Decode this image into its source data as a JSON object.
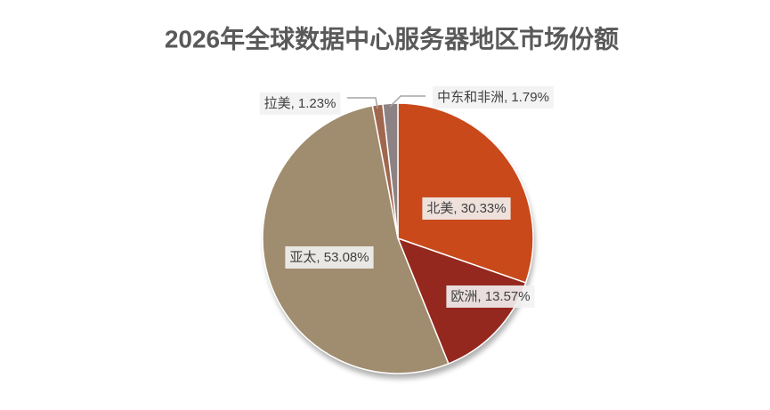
{
  "chart_data": {
    "type": "pie",
    "title": "2026年全球数据中心服务器地区市场份额",
    "values": [
      30.33,
      13.57,
      53.08,
      1.23,
      1.79
    ],
    "value_labels": [
      "北美, 30.33%",
      "欧洲, 13.57%",
      "亚太, 53.08%",
      "拉美, 1.23%",
      "中东和非洲, 1.79%"
    ],
    "colors": [
      "#C9491B",
      "#95281E",
      "#A08C6E",
      "#A0674F",
      "#8C8283"
    ]
  }
}
